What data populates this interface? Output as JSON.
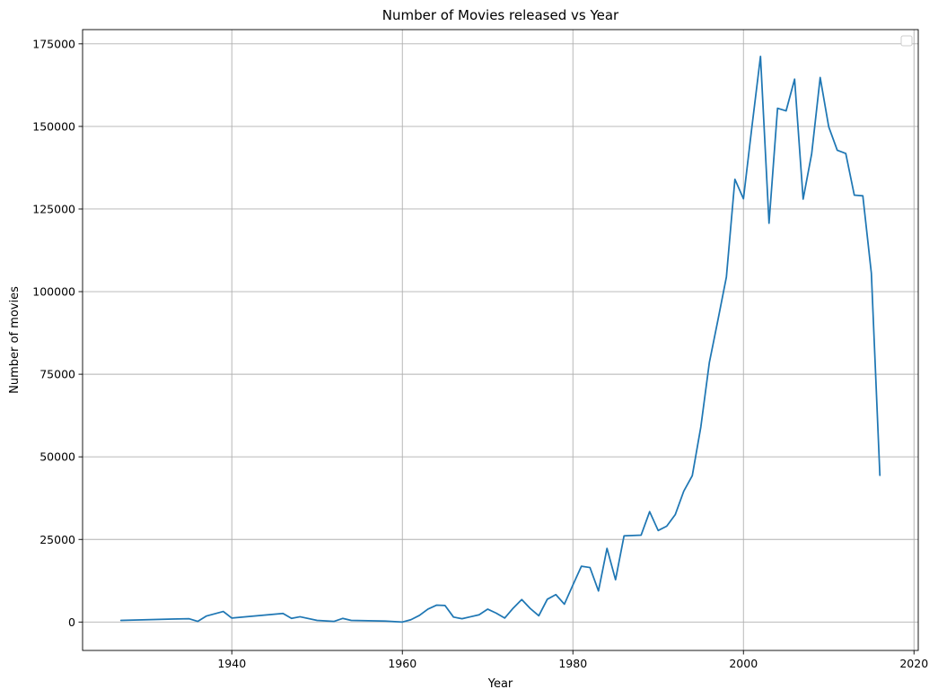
{
  "chart_data": {
    "type": "line",
    "title": "Number of Movies released vs Year",
    "xlabel": "Year",
    "ylabel": "Number of movies",
    "xlim": [
      1922.5,
      2020.5
    ],
    "ylim": [
      -8600,
      179300
    ],
    "x_ticks": [
      1940,
      1960,
      1980,
      2000,
      2020
    ],
    "y_ticks": [
      0,
      25000,
      50000,
      75000,
      100000,
      125000,
      150000,
      175000
    ],
    "grid": true,
    "legend": "top-right",
    "line_color": "#1f77b4",
    "series": [
      {
        "x": [
          1927,
          1933,
          1935,
          1936,
          1937,
          1939,
          1940,
          1946,
          1947,
          1948,
          1950,
          1952,
          1953,
          1954,
          1958,
          1960,
          1961,
          1962,
          1963,
          1964,
          1965,
          1966,
          1967,
          1968,
          1969,
          1970,
          1971,
          1972,
          1973,
          1974,
          1975,
          1976,
          1977,
          1978,
          1979,
          1980,
          1981,
          1982,
          1983,
          1984,
          1985,
          1986,
          1987,
          1988,
          1989,
          1990,
          1991,
          1992,
          1993,
          1994,
          1995,
          1996,
          1997,
          1998,
          1999,
          2000,
          2001,
          2002,
          2003,
          2004,
          2005,
          2006,
          2007,
          2008,
          2009,
          2010,
          2011,
          2012,
          2013,
          2014,
          2015,
          2016
        ],
        "y": [
          500,
          900,
          1000,
          200,
          1800,
          3200,
          1200,
          2600,
          1100,
          1600,
          500,
          200,
          1100,
          500,
          300,
          0,
          700,
          2000,
          3900,
          5100,
          5000,
          1500,
          1000,
          1600,
          2200,
          3900,
          2700,
          1200,
          4200,
          6800,
          4100,
          1900,
          6900,
          8300,
          5400,
          11200,
          16900,
          16500,
          9400,
          22300,
          12800,
          26100,
          26200,
          26300,
          33400,
          27700,
          29000,
          32500,
          39600,
          44300,
          59000,
          78500,
          91300,
          104400,
          134000,
          128100,
          150000,
          171200,
          120700,
          155500,
          154700,
          164300,
          128000,
          141700,
          164800,
          149900,
          142800,
          141800,
          129200,
          129000,
          105600,
          44400
        ]
      }
    ]
  }
}
